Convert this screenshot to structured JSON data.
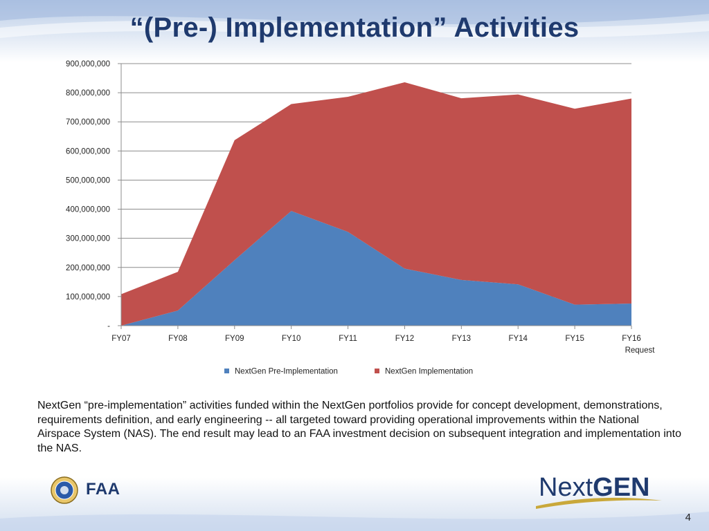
{
  "slide": {
    "title": "“(Pre-) Implementation” Activities",
    "description": "NextGen “pre-implementation” activities funded within the NextGen portfolios provide for concept development, demonstrations, requirements definition, and early engineering -- all targeted toward providing operational improvements within the National Airspace System (NAS).  The end result may lead to an FAA investment decision on subsequent integration and implementation into the NAS.",
    "page_number": "4"
  },
  "logos": {
    "faa": "FAA",
    "nextgen_next": "Next",
    "nextgen_gen": "GEN"
  },
  "chart_data": {
    "type": "area",
    "stacked": true,
    "title": "",
    "xlabel": "",
    "ylabel": "",
    "categories": [
      "FY07",
      "FY08",
      "FY09",
      "FY10",
      "FY11",
      "FY12",
      "FY13",
      "FY14",
      "FY15",
      "FY16 Request"
    ],
    "category_lines": [
      [
        "FY07"
      ],
      [
        "FY08"
      ],
      [
        "FY09"
      ],
      [
        "FY10"
      ],
      [
        "FY11"
      ],
      [
        "FY12"
      ],
      [
        "FY13"
      ],
      [
        "FY14"
      ],
      [
        "FY15"
      ],
      [
        "FY16",
        "Request"
      ]
    ],
    "ylim": [
      0,
      900000000
    ],
    "yticks": [
      0,
      100000000,
      200000000,
      300000000,
      400000000,
      500000000,
      600000000,
      700000000,
      800000000,
      900000000
    ],
    "ytick_labels": [
      "-",
      "100,000,000",
      "200,000,000",
      "300,000,000",
      "400,000,000",
      "500,000,000",
      "600,000,000",
      "700,000,000",
      "800,000,000",
      "900,000,000"
    ],
    "grid": true,
    "legend_position": "bottom",
    "series": [
      {
        "name": "NextGen Pre-Implementation",
        "color": "#4f81bd",
        "values": [
          0,
          52000000,
          225000000,
          394000000,
          322000000,
          196000000,
          157000000,
          142000000,
          72000000,
          76000000
        ]
      },
      {
        "name": "NextGen Implementation",
        "color": "#c0504d",
        "values": [
          108000000,
          133000000,
          412000000,
          367000000,
          464000000,
          640000000,
          624000000,
          652000000,
          673000000,
          704000000
        ]
      }
    ]
  }
}
